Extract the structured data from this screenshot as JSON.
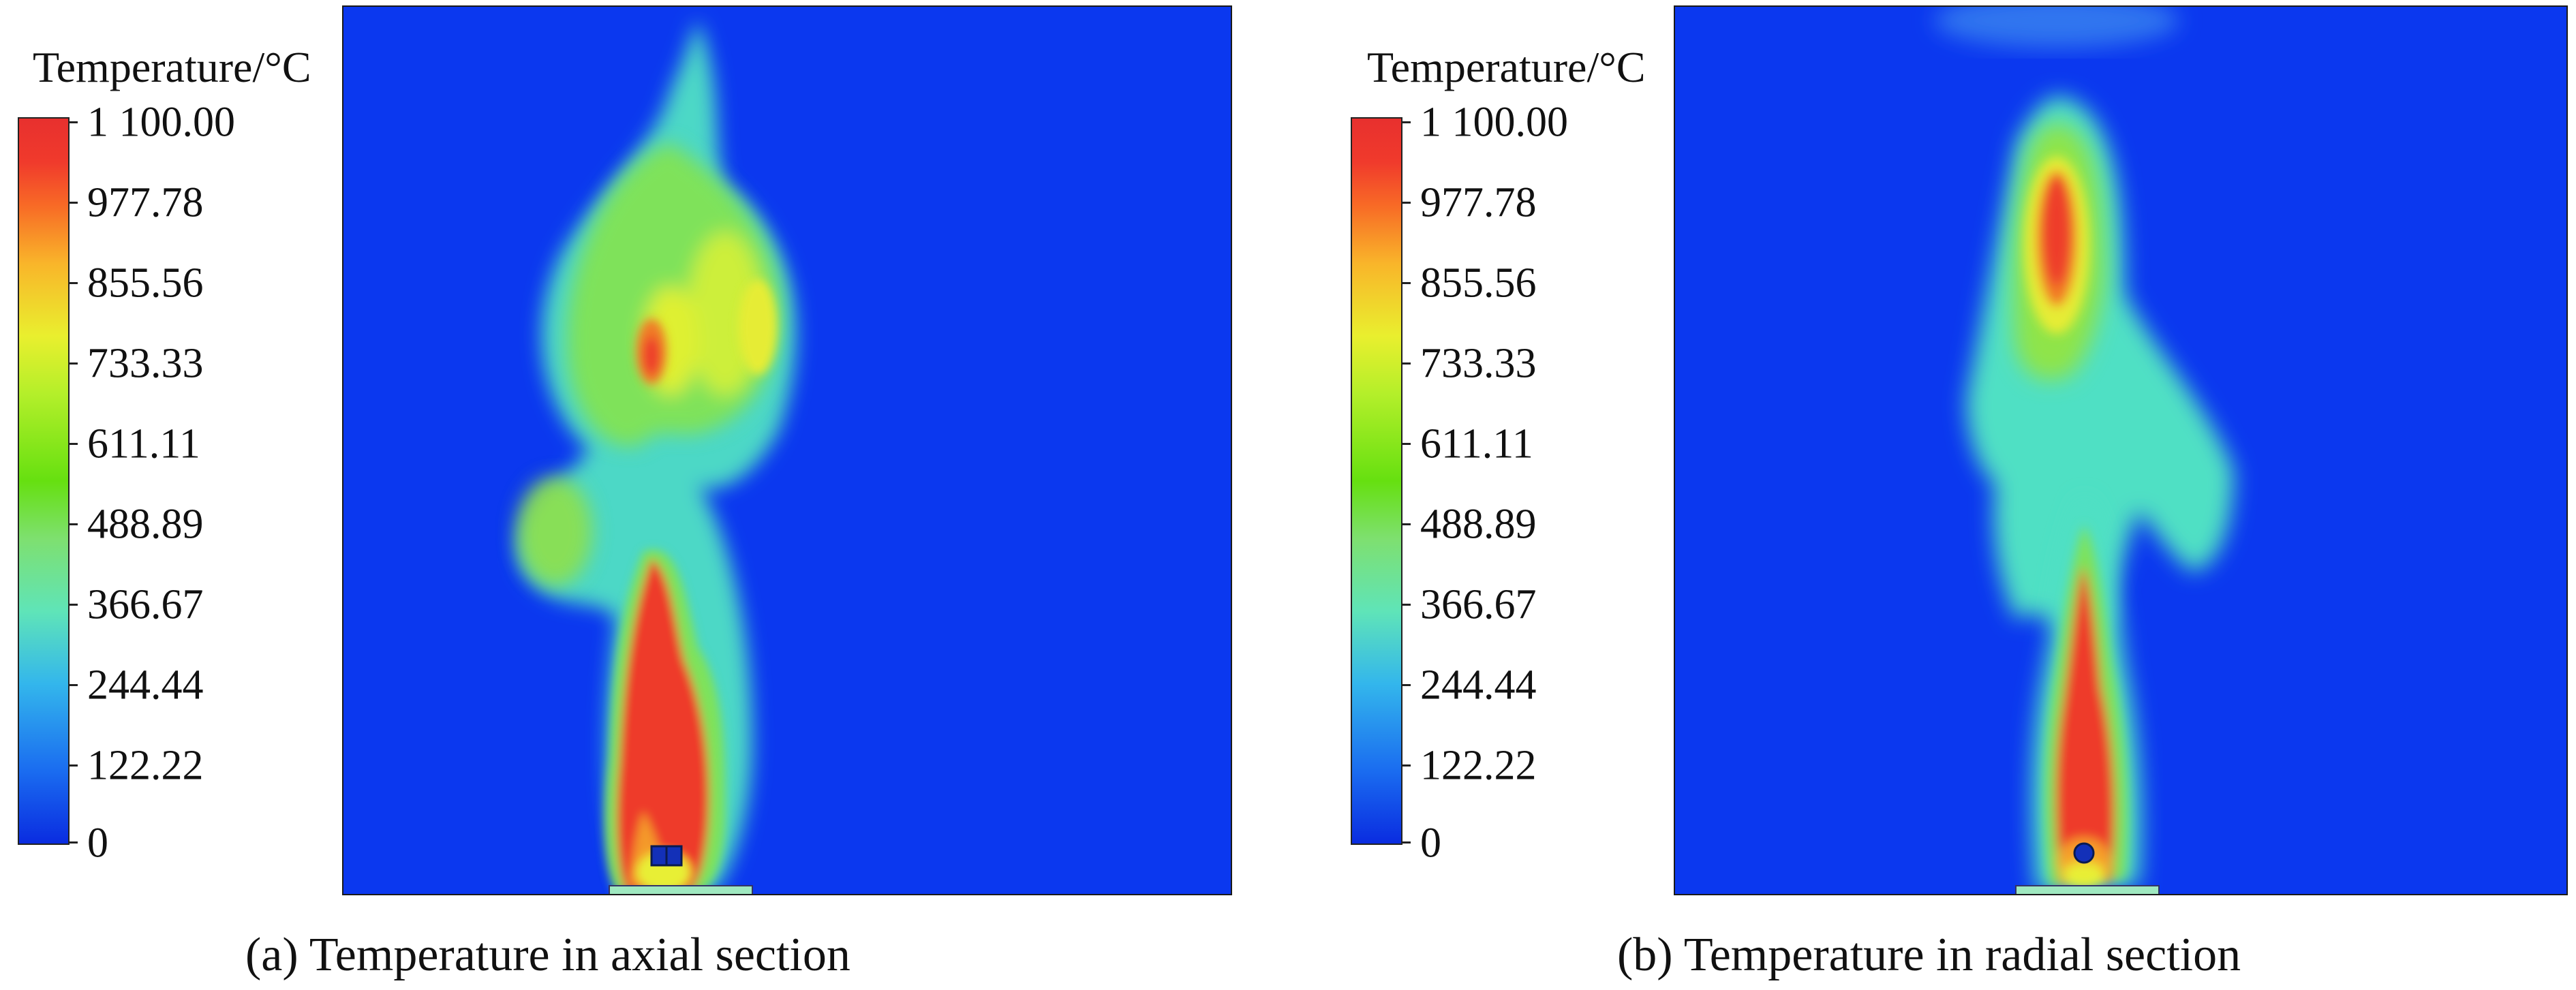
{
  "colorbar": {
    "title": "Temperature/°C",
    "ticks": [
      "1 100.00",
      "977.78",
      "855.56",
      "733.33",
      "611.11",
      "488.89",
      "366.67",
      "244.44",
      "122.22",
      "0"
    ],
    "colors": [
      "#0a2ce0",
      "#33b6ec",
      "#66e010",
      "#e9ef2e",
      "#f86a26",
      "#e8302e"
    ]
  },
  "panels": [
    {
      "caption": "(a) Temperature in axial section",
      "section": "axial",
      "object_shape": "square"
    },
    {
      "caption": "(b) Temperature in radial section",
      "section": "radial",
      "object_shape": "circle"
    }
  ],
  "background_color": "#0b38ef"
}
